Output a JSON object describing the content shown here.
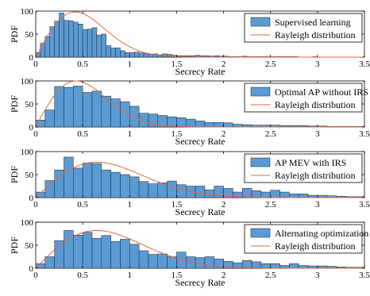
{
  "chart_data": [
    {
      "type": "bar",
      "subtype": "histogram",
      "xlabel": "Secrecy Rate",
      "ylabel": "PDF",
      "xlim": [
        0,
        3.5
      ],
      "ylim": [
        0,
        100
      ],
      "xticks": [
        "0",
        "0.5",
        "1",
        "1.5",
        "2",
        "2.5",
        "3",
        "3.5"
      ],
      "yticks": [
        "0",
        "50",
        "100"
      ],
      "bin_width": 0.05,
      "bin_start": 0.0,
      "legend_position": "top-right",
      "colors": {
        "bars": "#5b9bd5",
        "bar_edge": "#1f1f1f",
        "curve": "#e8643a"
      },
      "series": [
        {
          "name": "Supervised learning",
          "kind": "histogram",
          "values": [
            10,
            30,
            45,
            66,
            78,
            96,
            80,
            79,
            76,
            72,
            60,
            61,
            64,
            48,
            50,
            25,
            20,
            20,
            14,
            10,
            10,
            11,
            9,
            8,
            6,
            7,
            5,
            7,
            6,
            4,
            3,
            3,
            3,
            3,
            4,
            3,
            3,
            2,
            3,
            2,
            2,
            1,
            1,
            1,
            2,
            1,
            1,
            1,
            1,
            1,
            1,
            1,
            1,
            1,
            1,
            1,
            0,
            0,
            0,
            1,
            0,
            0,
            0,
            0,
            0,
            0,
            0,
            0,
            0,
            0
          ]
        },
        {
          "name": "Rayleigh distribution",
          "kind": "curve",
          "sigma": 0.42,
          "peak": 98
        }
      ]
    },
    {
      "type": "bar",
      "subtype": "histogram",
      "xlabel": "Secrecy Rate",
      "ylabel": "PDF",
      "xlim": [
        0,
        3.5
      ],
      "ylim": [
        0,
        100
      ],
      "xticks": [
        "0",
        "0.5",
        "1",
        "1.5",
        "2",
        "2.5",
        "3",
        "3.5"
      ],
      "yticks": [
        "0",
        "50",
        "100"
      ],
      "bin_width": 0.1,
      "bin_start": 0.0,
      "legend_position": "top-right",
      "colors": {
        "bars": "#5b9bd5",
        "bar_edge": "#1f1f1f",
        "curve": "#e8643a"
      },
      "series": [
        {
          "name": "Optimal AP without IRS",
          "kind": "histogram",
          "values": [
            15,
            37,
            88,
            86,
            89,
            75,
            78,
            67,
            61,
            55,
            45,
            30,
            28,
            25,
            22,
            20,
            17,
            13,
            10,
            10,
            9,
            6,
            5,
            4,
            4,
            4,
            3,
            3,
            3,
            2,
            2,
            1,
            1,
            1,
            1
          ]
        },
        {
          "name": "Rayleigh distribution",
          "kind": "curve",
          "sigma": 0.43,
          "peak": 100
        }
      ]
    },
    {
      "type": "bar",
      "subtype": "histogram",
      "xlabel": "Secrecy Rate",
      "ylabel": "PDF",
      "xlim": [
        0,
        3.5
      ],
      "ylim": [
        0,
        100
      ],
      "xticks": [
        "0",
        "0.5",
        "1",
        "1.5",
        "2",
        "2.5",
        "3",
        "3.5"
      ],
      "yticks": [
        "0",
        "50",
        "100"
      ],
      "bin_width": 0.1,
      "bin_start": 0.0,
      "legend_position": "top-right",
      "colors": {
        "bars": "#5b9bd5",
        "bar_edge": "#1f1f1f",
        "curve": "#e8643a"
      },
      "series": [
        {
          "name": "AP MEV with IRS",
          "kind": "histogram",
          "values": [
            12,
            37,
            60,
            88,
            64,
            75,
            74,
            60,
            55,
            50,
            45,
            35,
            30,
            32,
            36,
            28,
            25,
            25,
            17,
            25,
            20,
            12,
            20,
            15,
            12,
            16,
            12,
            8,
            8,
            5,
            5,
            4,
            3,
            2,
            2
          ]
        },
        {
          "name": "Rayleigh distribution",
          "kind": "curve",
          "sigma": 0.65,
          "peak": 77
        }
      ]
    },
    {
      "type": "bar",
      "subtype": "histogram",
      "xlabel": "Secrecy Rate",
      "ylabel": "PDF",
      "xlim": [
        0,
        3.5
      ],
      "ylim": [
        0,
        100
      ],
      "xticks": [
        "0",
        "0.5",
        "1",
        "1.5",
        "2",
        "2.5",
        "3",
        "3.5"
      ],
      "yticks": [
        "0",
        "50",
        "100"
      ],
      "bin_width": 0.1,
      "bin_start": 0.0,
      "legend_position": "top-right",
      "colors": {
        "bars": "#5b9bd5",
        "bar_edge": "#1f1f1f",
        "curve": "#e8643a"
      },
      "series": [
        {
          "name": "Alternating optimization",
          "kind": "histogram",
          "values": [
            10,
            25,
            60,
            82,
            72,
            78,
            65,
            71,
            58,
            63,
            52,
            38,
            30,
            31,
            25,
            35,
            25,
            23,
            25,
            20,
            15,
            12,
            17,
            14,
            10,
            10,
            6,
            10,
            6,
            5,
            5,
            4,
            3,
            2,
            2
          ]
        },
        {
          "name": "Rayleigh distribution",
          "kind": "curve",
          "sigma": 0.65,
          "peak": 82
        }
      ]
    }
  ]
}
